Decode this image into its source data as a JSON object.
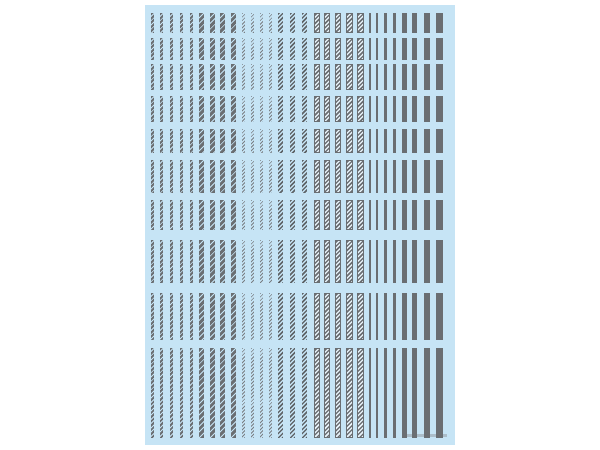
{
  "sheet": {
    "background_color": "#c6e4f5",
    "ink_color": "#6a6e72",
    "row_count": 10,
    "columns": [
      {
        "pattern": "rope-small"
      },
      {
        "pattern": "rope-small"
      },
      {
        "pattern": "rope-small"
      },
      {
        "pattern": "rope-small"
      },
      {
        "pattern": "rope-small"
      },
      {
        "pattern": "rope-large"
      },
      {
        "pattern": "rope-large"
      },
      {
        "pattern": "rope-large"
      },
      {
        "pattern": "rope-large"
      },
      {
        "pattern": "wavy"
      },
      {
        "pattern": "wavy"
      },
      {
        "pattern": "wavy"
      },
      {
        "pattern": "wavy"
      },
      {
        "pattern": "diagonal"
      },
      {
        "pattern": "diagonal"
      },
      {
        "pattern": "diagonal"
      },
      {
        "pattern": "boxed-rope"
      },
      {
        "pattern": "boxed-rope"
      },
      {
        "pattern": "boxed-rope"
      },
      {
        "pattern": "boxed-rope"
      },
      {
        "pattern": "boxed-rope"
      },
      {
        "pattern": "solid"
      },
      {
        "pattern": "solid"
      },
      {
        "pattern": "solid"
      },
      {
        "pattern": "solid"
      },
      {
        "pattern": "solid"
      },
      {
        "pattern": "solid"
      },
      {
        "pattern": "solid"
      },
      {
        "pattern": "solid"
      }
    ]
  }
}
